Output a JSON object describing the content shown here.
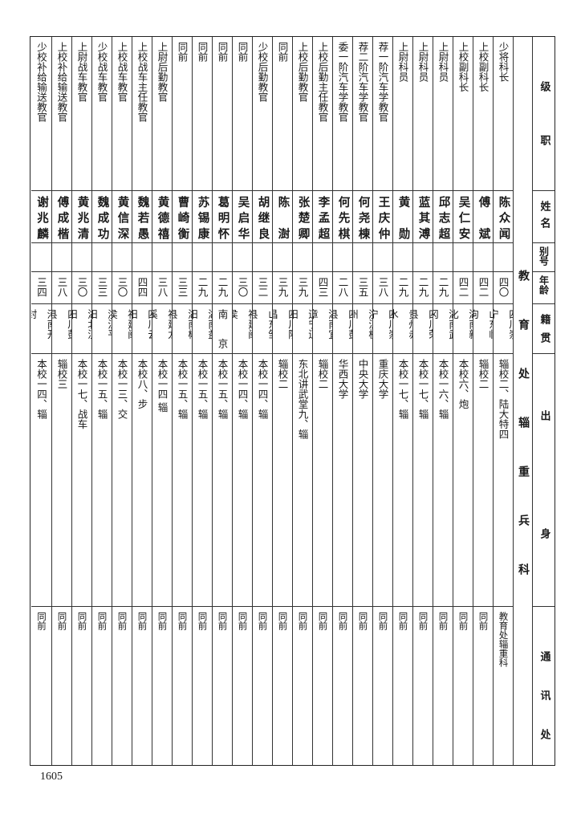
{
  "headers": {
    "rank": "级职",
    "name": "姓名",
    "alias": "别号",
    "age": "年龄",
    "native": "籍贯",
    "background": "出身",
    "address": "通讯处"
  },
  "section_title": "教育处辎重兵科",
  "rows": [
    {
      "rank": "少将科长",
      "name": "陈众闻",
      "alias": "",
      "age": "四〇",
      "native": "四川崇宁",
      "background": "辎校二、陆大特四",
      "address": "教育处辎重科"
    },
    {
      "rank": "上校副科长",
      "name": "傅斌",
      "alias": "",
      "age": "四二",
      "native": "山东临朐",
      "background": "辎校二",
      "address": "同前"
    },
    {
      "rank": "上校副科长",
      "name": "吴仁安",
      "alias": "",
      "age": "四二",
      "native": "湖南新化",
      "background": "本校六、炮",
      "address": "同前"
    },
    {
      "rank": "上尉科员",
      "name": "邱志超",
      "alias": "",
      "age": "二九",
      "native": "湖南武冈",
      "background": "本校一六、辎",
      "address": "同前"
    },
    {
      "rank": "上尉科员",
      "name": "蓝其溥",
      "alias": "",
      "age": "二九",
      "native": "四川荣县",
      "background": "本校一七、辎",
      "address": "同前"
    },
    {
      "rank": "上尉科员",
      "name": "黄勋",
      "alias": "",
      "age": "二九",
      "native": "贵州赤水",
      "background": "本校一七、辎",
      "address": "同前"
    },
    {
      "rank": "荐一阶汽车学教官",
      "name": "王庆仲",
      "alias": "",
      "age": "三八",
      "native": "四川崇宁",
      "background": "重庆大学",
      "address": "同前"
    },
    {
      "rank": "荐二阶汽车学教官",
      "name": "何尧棟",
      "alias": "",
      "age": "三五",
      "native": "浙江杭州",
      "background": "中央大学",
      "address": "同前"
    },
    {
      "rank": "委一阶汽车学教官",
      "name": "何先棋",
      "alias": "",
      "age": "二八",
      "native": "四川彭县",
      "background": "华西大学",
      "address": "同前"
    },
    {
      "rank": "上校后勤主任教官",
      "name": "李孟超",
      "alias": "",
      "age": "四三",
      "native": "湖南宜章",
      "background": "辎校二",
      "address": "同前"
    },
    {
      "rank": "上校后勤教官",
      "name": "张楚卿",
      "alias": "",
      "age": "三九",
      "native": "辽宁辽阳",
      "background": "东北讲武堂九、辎",
      "address": "同前"
    },
    {
      "rank": "同前",
      "name": "陈澍",
      "alias": "",
      "age": "三九",
      "native": "四川隆昌",
      "background": "辎校二",
      "address": "同前"
    },
    {
      "rank": "少校后勤教官",
      "name": "胡继良",
      "alias": "",
      "age": "三二",
      "native": "山东邹县",
      "background": "本校一四、辎",
      "address": "同前"
    },
    {
      "rank": "同前",
      "name": "吴启华",
      "alias": "",
      "age": "三〇",
      "native": "福建闽侯",
      "background": "本校一四、辎",
      "address": "同前"
    },
    {
      "rank": "同前",
      "name": "葛明怀",
      "alias": "",
      "age": "二九",
      "native": "南京",
      "background": "本校一五、辎",
      "address": "同前"
    },
    {
      "rank": "同前",
      "name": "苏锡康",
      "alias": "",
      "age": "二九",
      "native": "湖南益阳",
      "background": "本校一五、辎",
      "address": "同前"
    },
    {
      "rank": "同前",
      "name": "曹崎衡",
      "alias": "",
      "age": "三三",
      "native": "湖南郴县",
      "background": "本校一五、辎",
      "address": "同前"
    },
    {
      "rank": "上尉后勤教官",
      "name": "黄德禧",
      "alias": "",
      "age": "三八",
      "native": "福建龙溪",
      "background": "本校一四 辎",
      "address": "同前"
    },
    {
      "rank": "上校战车主任教官",
      "name": "魏若愚",
      "alias": "",
      "age": "四四",
      "native": "四川云阳",
      "background": "本校八、步",
      "address": "同前"
    },
    {
      "rank": "上校战车教官",
      "name": "黄信深",
      "alias": "",
      "age": "三〇",
      "native": "福建闽侯",
      "background": "本校一三、交",
      "address": "同前"
    },
    {
      "rank": "少校战车教官",
      "name": "魏成功",
      "alias": "",
      "age": "三三",
      "native": "浙江平阳",
      "background": "本校一五、辎",
      "address": "同前"
    },
    {
      "rank": "上尉战车教官",
      "name": "黄兆清",
      "alias": "",
      "age": "三〇",
      "native": "湖北汉阳",
      "background": "本校一七、战车",
      "address": "同前"
    },
    {
      "rank": "上校补给输送教官",
      "name": "傅成楷",
      "alias": "",
      "age": "三八",
      "native": "四川彭县",
      "background": "辎校三",
      "address": "同前"
    },
    {
      "rank": "少校补给输送教官",
      "name": "谢兆麟",
      "alias": "",
      "age": "三四",
      "native": "河南开封",
      "background": "本校一四、辎",
      "address": "同前"
    }
  ],
  "page_number": "1605"
}
